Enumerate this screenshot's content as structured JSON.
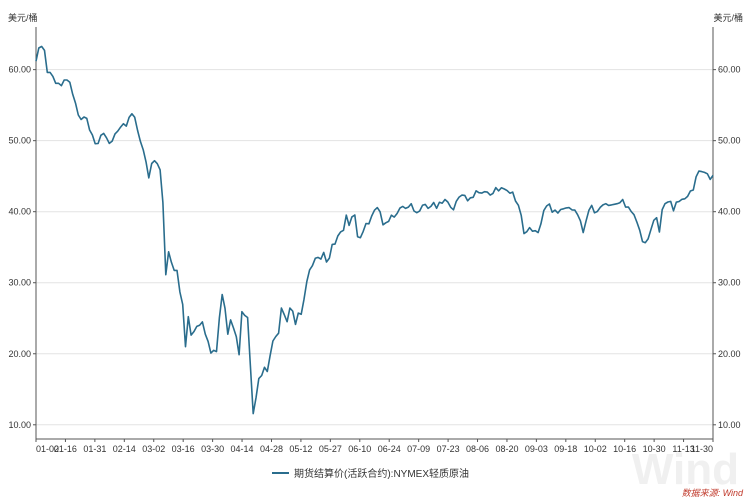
{
  "chart_data": {
    "type": "line",
    "title": "",
    "ylabel_left": "美元/桶",
    "ylabel_right": "美元/桶",
    "ylim": [
      8,
      66
    ],
    "y_ticks": [
      "10.00",
      "20.00",
      "30.00",
      "40.00",
      "50.00",
      "60.00"
    ],
    "y_tick_values": [
      10,
      20,
      30,
      40,
      50,
      60
    ],
    "x_labels": [
      "01-02",
      "01-16",
      "01-31",
      "02-14",
      "03-02",
      "03-16",
      "03-30",
      "04-14",
      "04-28",
      "05-12",
      "05-27",
      "06-10",
      "06-24",
      "07-09",
      "07-23",
      "08-06",
      "08-20",
      "09-03",
      "09-18",
      "10-02",
      "10-16",
      "10-30",
      "11-13",
      "11-30"
    ],
    "grid": true,
    "legend_position": "bottom",
    "series": [
      {
        "name": "期货结算价(活跃合约):NYMEX轻质原油",
        "color": "#2a6d8d",
        "values": [
          61.18,
          63.05,
          63.27,
          62.7,
          59.61,
          59.61,
          59.04,
          58.08,
          58.08,
          57.73,
          58.54,
          58.54,
          58.23,
          56.52,
          55.28,
          53.61,
          52.98,
          53.33,
          53.14,
          51.5,
          50.8,
          49.57,
          49.6,
          50.75,
          51.02,
          50.4,
          49.61,
          49.94,
          50.95,
          51.35,
          51.91,
          52.39,
          52.05,
          53.27,
          53.78,
          53.29,
          51.43,
          49.9,
          48.73,
          47.02,
          44.76,
          46.78,
          47.18,
          46.75,
          45.9,
          41.28,
          31.13,
          34.36,
          32.87,
          31.73,
          31.73,
          28.7,
          26.95,
          20.99,
          25.22,
          22.63,
          23.14,
          23.85,
          24.01,
          24.49,
          22.76,
          21.74,
          20.09,
          20.48,
          20.31,
          25.09,
          28.34,
          26.4,
          22.76,
          24.76,
          23.63,
          22.41,
          19.87,
          25.92,
          25.4,
          25.1,
          18.27,
          11.57,
          13.78,
          16.5,
          16.94,
          18.09,
          17.5,
          19.72,
          21.8,
          22.43,
          22.9,
          26.43,
          25.53,
          24.52,
          26.44,
          26.0,
          24.14,
          25.73,
          25.55,
          27.66,
          30.14,
          31.81,
          32.39,
          33.44,
          33.57,
          33.32,
          34.27,
          32.92,
          33.46,
          35.39,
          35.44,
          36.58,
          37.16,
          37.38,
          39.52,
          38.07,
          39.27,
          39.53,
          36.46,
          36.34,
          37.23,
          38.34,
          38.3,
          39.4,
          40.21,
          40.57,
          39.99,
          38.16,
          38.43,
          38.64,
          39.51,
          39.24,
          39.74,
          40.5,
          40.75,
          40.46,
          40.65,
          41.12,
          40.1,
          39.86,
          40.08,
          40.9,
          41.02,
          40.47,
          40.75,
          41.29,
          40.48,
          41.32,
          41.2,
          41.71,
          41.36,
          40.62,
          40.27,
          41.46,
          42.06,
          42.34,
          42.29,
          41.53,
          41.96,
          42.02,
          42.94,
          42.67,
          42.61,
          42.82,
          42.76,
          42.34,
          42.58,
          43.39,
          42.93,
          43.37,
          43.19,
          42.97,
          42.6,
          42.76,
          41.51,
          40.9,
          39.49,
          36.91,
          37.18,
          37.76,
          37.26,
          37.33,
          37.05,
          38.28,
          40.16,
          40.8,
          41.08,
          39.93,
          40.22,
          39.82,
          40.31,
          40.4,
          40.53,
          40.58,
          40.25,
          40.22,
          39.57,
          38.72,
          37.05,
          38.72,
          40.2,
          40.88,
          39.85,
          40.03,
          40.6,
          40.96,
          41.12,
          40.88,
          40.96,
          41.04,
          41.12,
          41.26,
          41.72,
          40.64,
          40.64,
          40.03,
          39.57,
          38.56,
          37.39,
          35.79,
          35.64,
          36.17,
          37.46,
          38.79,
          39.15,
          37.14,
          40.29,
          41.12,
          41.36,
          41.45,
          40.13,
          41.34,
          41.43,
          41.74,
          41.82,
          42.15,
          42.91,
          43.06,
          44.91,
          45.71,
          45.64,
          45.53,
          45.34,
          44.55,
          45.12
        ]
      }
    ]
  },
  "legend": {
    "label": "期货结算价(活跃合约):NYMEX轻质原油"
  },
  "source": "数据来源: Wind",
  "watermark": "Wind"
}
